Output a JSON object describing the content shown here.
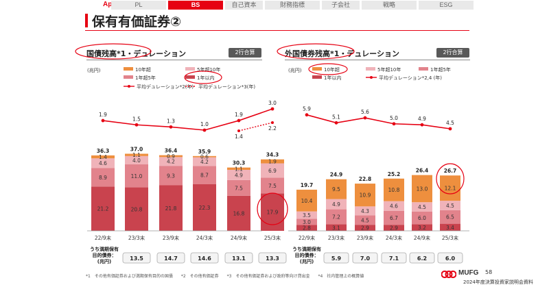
{
  "header": {
    "appendix": "Appendix",
    "tabs": [
      {
        "label": "PL",
        "active": false
      },
      {
        "label": "BS",
        "active": true
      },
      {
        "label": "自己資本",
        "active": false
      },
      {
        "label": "財務指標",
        "active": false
      },
      {
        "label": "子会社",
        "active": false
      },
      {
        "label": "戦略",
        "active": false
      },
      {
        "label": "ESG",
        "active": false
      }
    ]
  },
  "page_title": "保有有価証券②",
  "colors": {
    "accent": "#e60012",
    "dark_red": "#c9434e",
    "mid_pink": "#e2838c",
    "light_pink": "#f0b3b9",
    "orange": "#ee8f3e",
    "line": "#e60012"
  },
  "left_panel": {
    "title": "国債残高*1・デュレーション",
    "badge": "2行合算",
    "unit": "(兆円)",
    "legend": {
      "over10": "10年超",
      "y5to10": "5年超10年",
      "y1to5": "1年超5年",
      "within1": "1年以内",
      "duration": "平均デュレーション*2(年)",
      "duration_alt": "平均デュレーション*3(年)"
    },
    "hold_label": [
      "うち満期保有",
      "目的債券：",
      "(兆円)"
    ]
  },
  "right_panel": {
    "title": "外国債券残高*1・デュレーション",
    "badge": "2行合算",
    "unit": "(兆円)",
    "legend": {
      "over10": "10年超",
      "y5to10": "5年超10年",
      "y1to5": "1年超5年",
      "within1": "1年以内",
      "duration": "平均デュレーション*2,4 (年)"
    },
    "hold_label": [
      "うち満期保有",
      "目的債券：",
      "(兆円)"
    ]
  },
  "chart_data": [
    {
      "type": "bar",
      "categories": [
        "22/9末",
        "23/3末",
        "23/9末",
        "24/3末",
        "24/9末",
        "25/3末"
      ],
      "series": [
        {
          "name": "1年以内",
          "values": [
            21.2,
            20.8,
            21.8,
            22.3,
            16.8,
            17.9
          ]
        },
        {
          "name": "1年超5年",
          "values": [
            8.9,
            11.0,
            9.3,
            8.7,
            7.5,
            7.5
          ]
        },
        {
          "name": "5年超10年",
          "values": [
            4.6,
            4.0,
            4.2,
            4.2,
            4.9,
            6.9
          ]
        },
        {
          "name": "10年超",
          "values": [
            1.4,
            1.1,
            0.9,
            0.6,
            1.1,
            1.9
          ]
        }
      ],
      "totals": [
        "36.3",
        "37.0",
        "36.4",
        "35.9",
        "30.3",
        "34.3"
      ],
      "duration": {
        "name": "平均デュレーション*2(年)",
        "values": [
          1.9,
          1.5,
          1.3,
          1.0,
          1.9,
          3.0
        ]
      },
      "duration_alt": {
        "name": "平均デュレーション*3(年)",
        "x": [
          "24/9末",
          "25/3末"
        ],
        "values": [
          1.4,
          2.2
        ]
      },
      "held_to_maturity": [
        "13.5",
        "14.7",
        "14.6",
        "13.1",
        "13.3"
      ],
      "ylim": [
        0,
        40
      ]
    },
    {
      "type": "bar",
      "categories": [
        "22/9末",
        "23/3末",
        "23/9末",
        "24/3末",
        "24/9末",
        "25/3末"
      ],
      "series": [
        {
          "name": "1年以内",
          "values": [
            2.8,
            3.1,
            2.9,
            2.9,
            3.2,
            3.4
          ]
        },
        {
          "name": "1年超5年",
          "values": [
            3.0,
            7.2,
            4.5,
            6.7,
            6.0,
            6.5
          ]
        },
        {
          "name": "5年超10年",
          "values": [
            3.5,
            4.9,
            4.3,
            4.6,
            4.5,
            4.5
          ]
        },
        {
          "name": "10年超",
          "values": [
            10.4,
            9.5,
            10.9,
            10.8,
            13.0,
            12.1
          ]
        }
      ],
      "totals": [
        "19.7",
        "24.9",
        "22.8",
        "25.2",
        "26.4",
        "26.7"
      ],
      "duration": {
        "name": "平均デュレーション*2,4 (年)",
        "values": [
          5.9,
          5.1,
          5.6,
          5.0,
          4.9,
          4.5
        ]
      },
      "held_to_maturity": [
        "5.9",
        "7.0",
        "7.1",
        "6.2",
        "6.0"
      ],
      "ylim": [
        0,
        40
      ]
    }
  ],
  "footnotes": "*1　その他有価証券および満期保有目的の国債　　*2　その他有価証券　　*3　その他有価証券および政府等向け貸出金　　*4　社内管理上の概算値",
  "footer": {
    "logo_text": "MUFG",
    "page_number": "58",
    "doc_name": "2024年度決算投資家説明会資料"
  }
}
